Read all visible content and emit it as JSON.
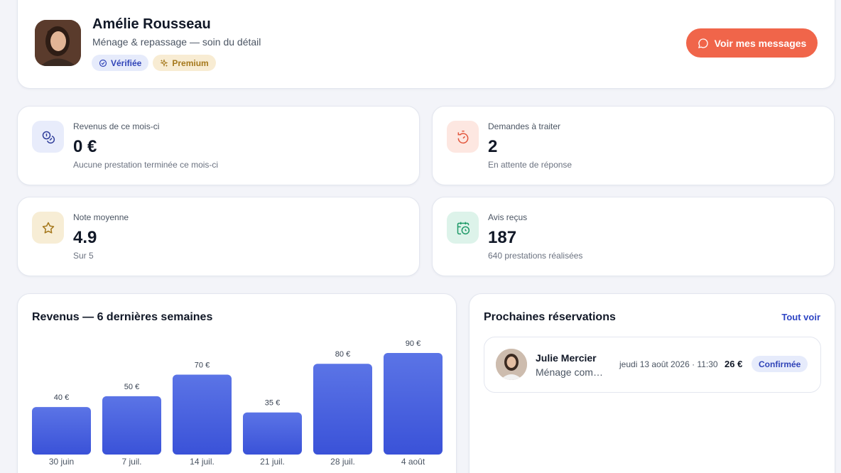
{
  "profile": {
    "name": "Amélie Rousseau",
    "subtitle": "Ménage & repassage — soin du détail",
    "badges": {
      "verified": "Vérifiée",
      "premium": "Premium"
    },
    "messages_button": "Voir mes messages"
  },
  "stats": [
    {
      "label": "Revenus de ce mois-ci",
      "value": "0 €",
      "note": "Aucune prestation terminée ce mois-ci",
      "icon": "coins-icon"
    },
    {
      "label": "Demandes à traiter",
      "value": "2",
      "note": "En attente de réponse",
      "icon": "timer-icon"
    },
    {
      "label": "Note moyenne",
      "value": "4.9",
      "note": "Sur 5",
      "icon": "star-icon"
    },
    {
      "label": "Avis reçus",
      "value": "187",
      "note": "640 prestations réalisées",
      "icon": "calendar-clock-icon"
    }
  ],
  "revenue": {
    "title": "Revenus — 6 dernières semaines"
  },
  "chart_data": {
    "type": "bar",
    "categories": [
      "30 juin",
      "7 juil.",
      "14 juil.",
      "21 juil.",
      "28 juil.",
      "4 août"
    ],
    "values": [
      40,
      50,
      70,
      35,
      80,
      90
    ],
    "value_labels": [
      "40 €",
      "50 €",
      "70 €",
      "35 €",
      "80 €",
      "90 €"
    ],
    "ylim": [
      0,
      90
    ],
    "grid": false,
    "colors": {
      "top": "#5b74e6",
      "bottom": "#3a52d8"
    }
  },
  "reservations": {
    "title": "Prochaines réservations",
    "see_all": "Tout voir",
    "items": [
      {
        "name": "Julie Mercier",
        "service": "Ménage complet",
        "date": "jeudi 13 août 2026 · 11:30",
        "price": "26 €",
        "status": "Confirmée"
      }
    ]
  },
  "colors": {
    "accent": "#f0654a",
    "primary": "#3a52d8",
    "background": "#f3f4f9"
  }
}
